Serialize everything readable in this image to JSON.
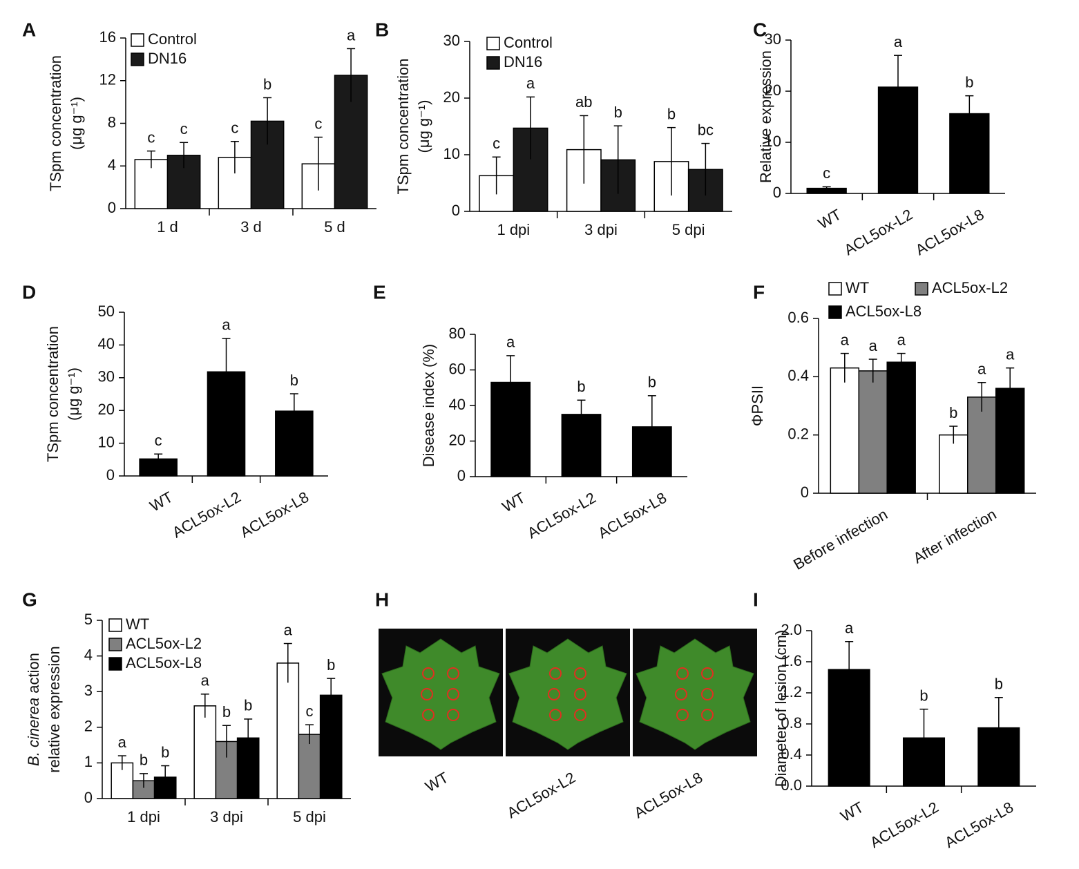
{
  "chart_data": [
    {
      "type": "bar",
      "panel": "A",
      "y_label": [
        "TSpm concentration",
        "(μg g⁻¹)"
      ],
      "categories": [
        "1 d",
        "3 d",
        "5 d"
      ],
      "series": [
        {
          "name": "Control",
          "color": "#ffffff",
          "values": [
            4.6,
            4.8,
            4.2
          ],
          "errors": [
            0.8,
            1.5,
            2.5
          ],
          "labels": [
            "c",
            "c",
            "c"
          ]
        },
        {
          "name": "DN16",
          "color": "#1a1a1a",
          "values": [
            5.0,
            8.2,
            12.5
          ],
          "errors": [
            1.2,
            2.2,
            2.5
          ],
          "labels": [
            "c",
            "b",
            "a"
          ]
        }
      ],
      "ylim": [
        0,
        16
      ],
      "yticks": [
        0,
        4,
        8,
        12,
        16
      ]
    },
    {
      "type": "bar",
      "panel": "B",
      "y_label": [
        "TSpm concentration",
        "(μg g⁻¹)"
      ],
      "categories": [
        "1 dpi",
        "3 dpi",
        "5 dpi"
      ],
      "series": [
        {
          "name": "Control",
          "color": "#ffffff",
          "values": [
            6.3,
            10.9,
            8.8
          ],
          "errors": [
            3.3,
            6.0,
            6.0
          ],
          "labels": [
            "c",
            "ab",
            "b"
          ]
        },
        {
          "name": "DN16",
          "color": "#1a1a1a",
          "values": [
            14.7,
            9.1,
            7.4
          ],
          "errors": [
            5.5,
            6.0,
            4.6
          ],
          "labels": [
            "a",
            "b",
            "bc"
          ]
        }
      ],
      "ylim": [
        0,
        30
      ],
      "yticks": [
        0,
        10,
        20,
        30
      ]
    },
    {
      "type": "bar",
      "panel": "C",
      "y_label": [
        "Relative expression"
      ],
      "categories": [
        "WT",
        "ACL5ox-L2",
        "ACL5ox-L8"
      ],
      "color": "#000000",
      "values": [
        1.0,
        20.8,
        15.6
      ],
      "errors": [
        0.3,
        6.2,
        3.5
      ],
      "labels": [
        "c",
        "a",
        "b"
      ],
      "ylim": [
        0,
        30
      ],
      "yticks": [
        0,
        10,
        20,
        30
      ]
    },
    {
      "type": "bar",
      "panel": "D",
      "y_label": [
        "TSpm concentration",
        "(μg g⁻¹)"
      ],
      "categories": [
        "WT",
        "ACL5ox-L2",
        "ACL5ox-L8"
      ],
      "color": "#000000",
      "values": [
        5.2,
        31.8,
        19.8
      ],
      "errors": [
        1.5,
        10.2,
        5.3
      ],
      "labels": [
        "c",
        "a",
        "b"
      ],
      "ylim": [
        0,
        50
      ],
      "yticks": [
        0,
        10,
        20,
        30,
        40,
        50
      ]
    },
    {
      "type": "bar",
      "panel": "E",
      "y_label": [
        "Disease index (%)"
      ],
      "categories": [
        "WT",
        "ACL5ox-L2",
        "ACL5ox-L8"
      ],
      "color": "#000000",
      "values": [
        53,
        35,
        28
      ],
      "errors": [
        15,
        8,
        17.5
      ],
      "labels": [
        "a",
        "b",
        "b"
      ],
      "ylim": [
        0,
        80
      ],
      "yticks": [
        0,
        20,
        40,
        60,
        80
      ]
    },
    {
      "type": "bar",
      "panel": "F",
      "y_label": [
        "ΦPSII"
      ],
      "categories": [
        "Before infection",
        "After infection"
      ],
      "series": [
        {
          "name": "WT",
          "color": "#ffffff",
          "values": [
            0.43,
            0.2
          ],
          "errors": [
            0.05,
            0.03
          ],
          "labels": [
            "a",
            "b"
          ]
        },
        {
          "name": "ACL5ox-L2",
          "color": "#808080",
          "values": [
            0.42,
            0.33
          ],
          "errors": [
            0.04,
            0.05
          ],
          "labels": [
            "a",
            "a"
          ]
        },
        {
          "name": "ACL5ox-L8",
          "color": "#000000",
          "values": [
            0.45,
            0.36
          ],
          "errors": [
            0.03,
            0.07
          ],
          "labels": [
            "a",
            "a"
          ]
        }
      ],
      "ylim": [
        0,
        0.6
      ],
      "yticks": [
        0,
        0.2,
        0.4,
        0.6
      ]
    },
    {
      "type": "bar",
      "panel": "G",
      "y_label": [
        "B. cinerea",
        "action",
        "relative expression"
      ],
      "categories": [
        "1 dpi",
        "3 dpi",
        "5 dpi"
      ],
      "series": [
        {
          "name": "WT",
          "color": "#ffffff",
          "values": [
            1.0,
            2.6,
            3.8
          ],
          "errors": [
            0.2,
            0.33,
            0.55
          ],
          "labels": [
            "a",
            "a",
            "a"
          ]
        },
        {
          "name": "ACL5ox-L2",
          "color": "#808080",
          "values": [
            0.5,
            1.6,
            1.8
          ],
          "errors": [
            0.2,
            0.45,
            0.27
          ],
          "labels": [
            "b",
            "b",
            "c"
          ]
        },
        {
          "name": "ACL5ox-L8",
          "color": "#000000",
          "values": [
            0.6,
            1.7,
            2.9
          ],
          "errors": [
            0.32,
            0.53,
            0.47
          ],
          "labels": [
            "b",
            "b",
            "b"
          ]
        }
      ],
      "ylim": [
        0,
        5
      ],
      "yticks": [
        0,
        1,
        2,
        3,
        4,
        5
      ]
    },
    {
      "type": "image",
      "panel": "H",
      "categories": [
        "WT",
        "ACL5ox-L2",
        "ACL5ox-L8"
      ]
    },
    {
      "type": "bar",
      "panel": "I",
      "y_label": [
        "Diameter of lesion (cm)"
      ],
      "categories": [
        "WT",
        "ACL5ox-L2",
        "ACL5ox-L8"
      ],
      "color": "#000000",
      "values": [
        1.5,
        0.62,
        0.75
      ],
      "errors": [
        0.36,
        0.37,
        0.39
      ],
      "labels": [
        "a",
        "b",
        "b"
      ],
      "ylim": [
        0,
        2
      ],
      "yticks": [
        {
          "value": 0,
          "label": "0.0"
        },
        0.4,
        0.8,
        1.2,
        1.6,
        {
          "value": 2,
          "label": "2.0"
        }
      ]
    }
  ]
}
